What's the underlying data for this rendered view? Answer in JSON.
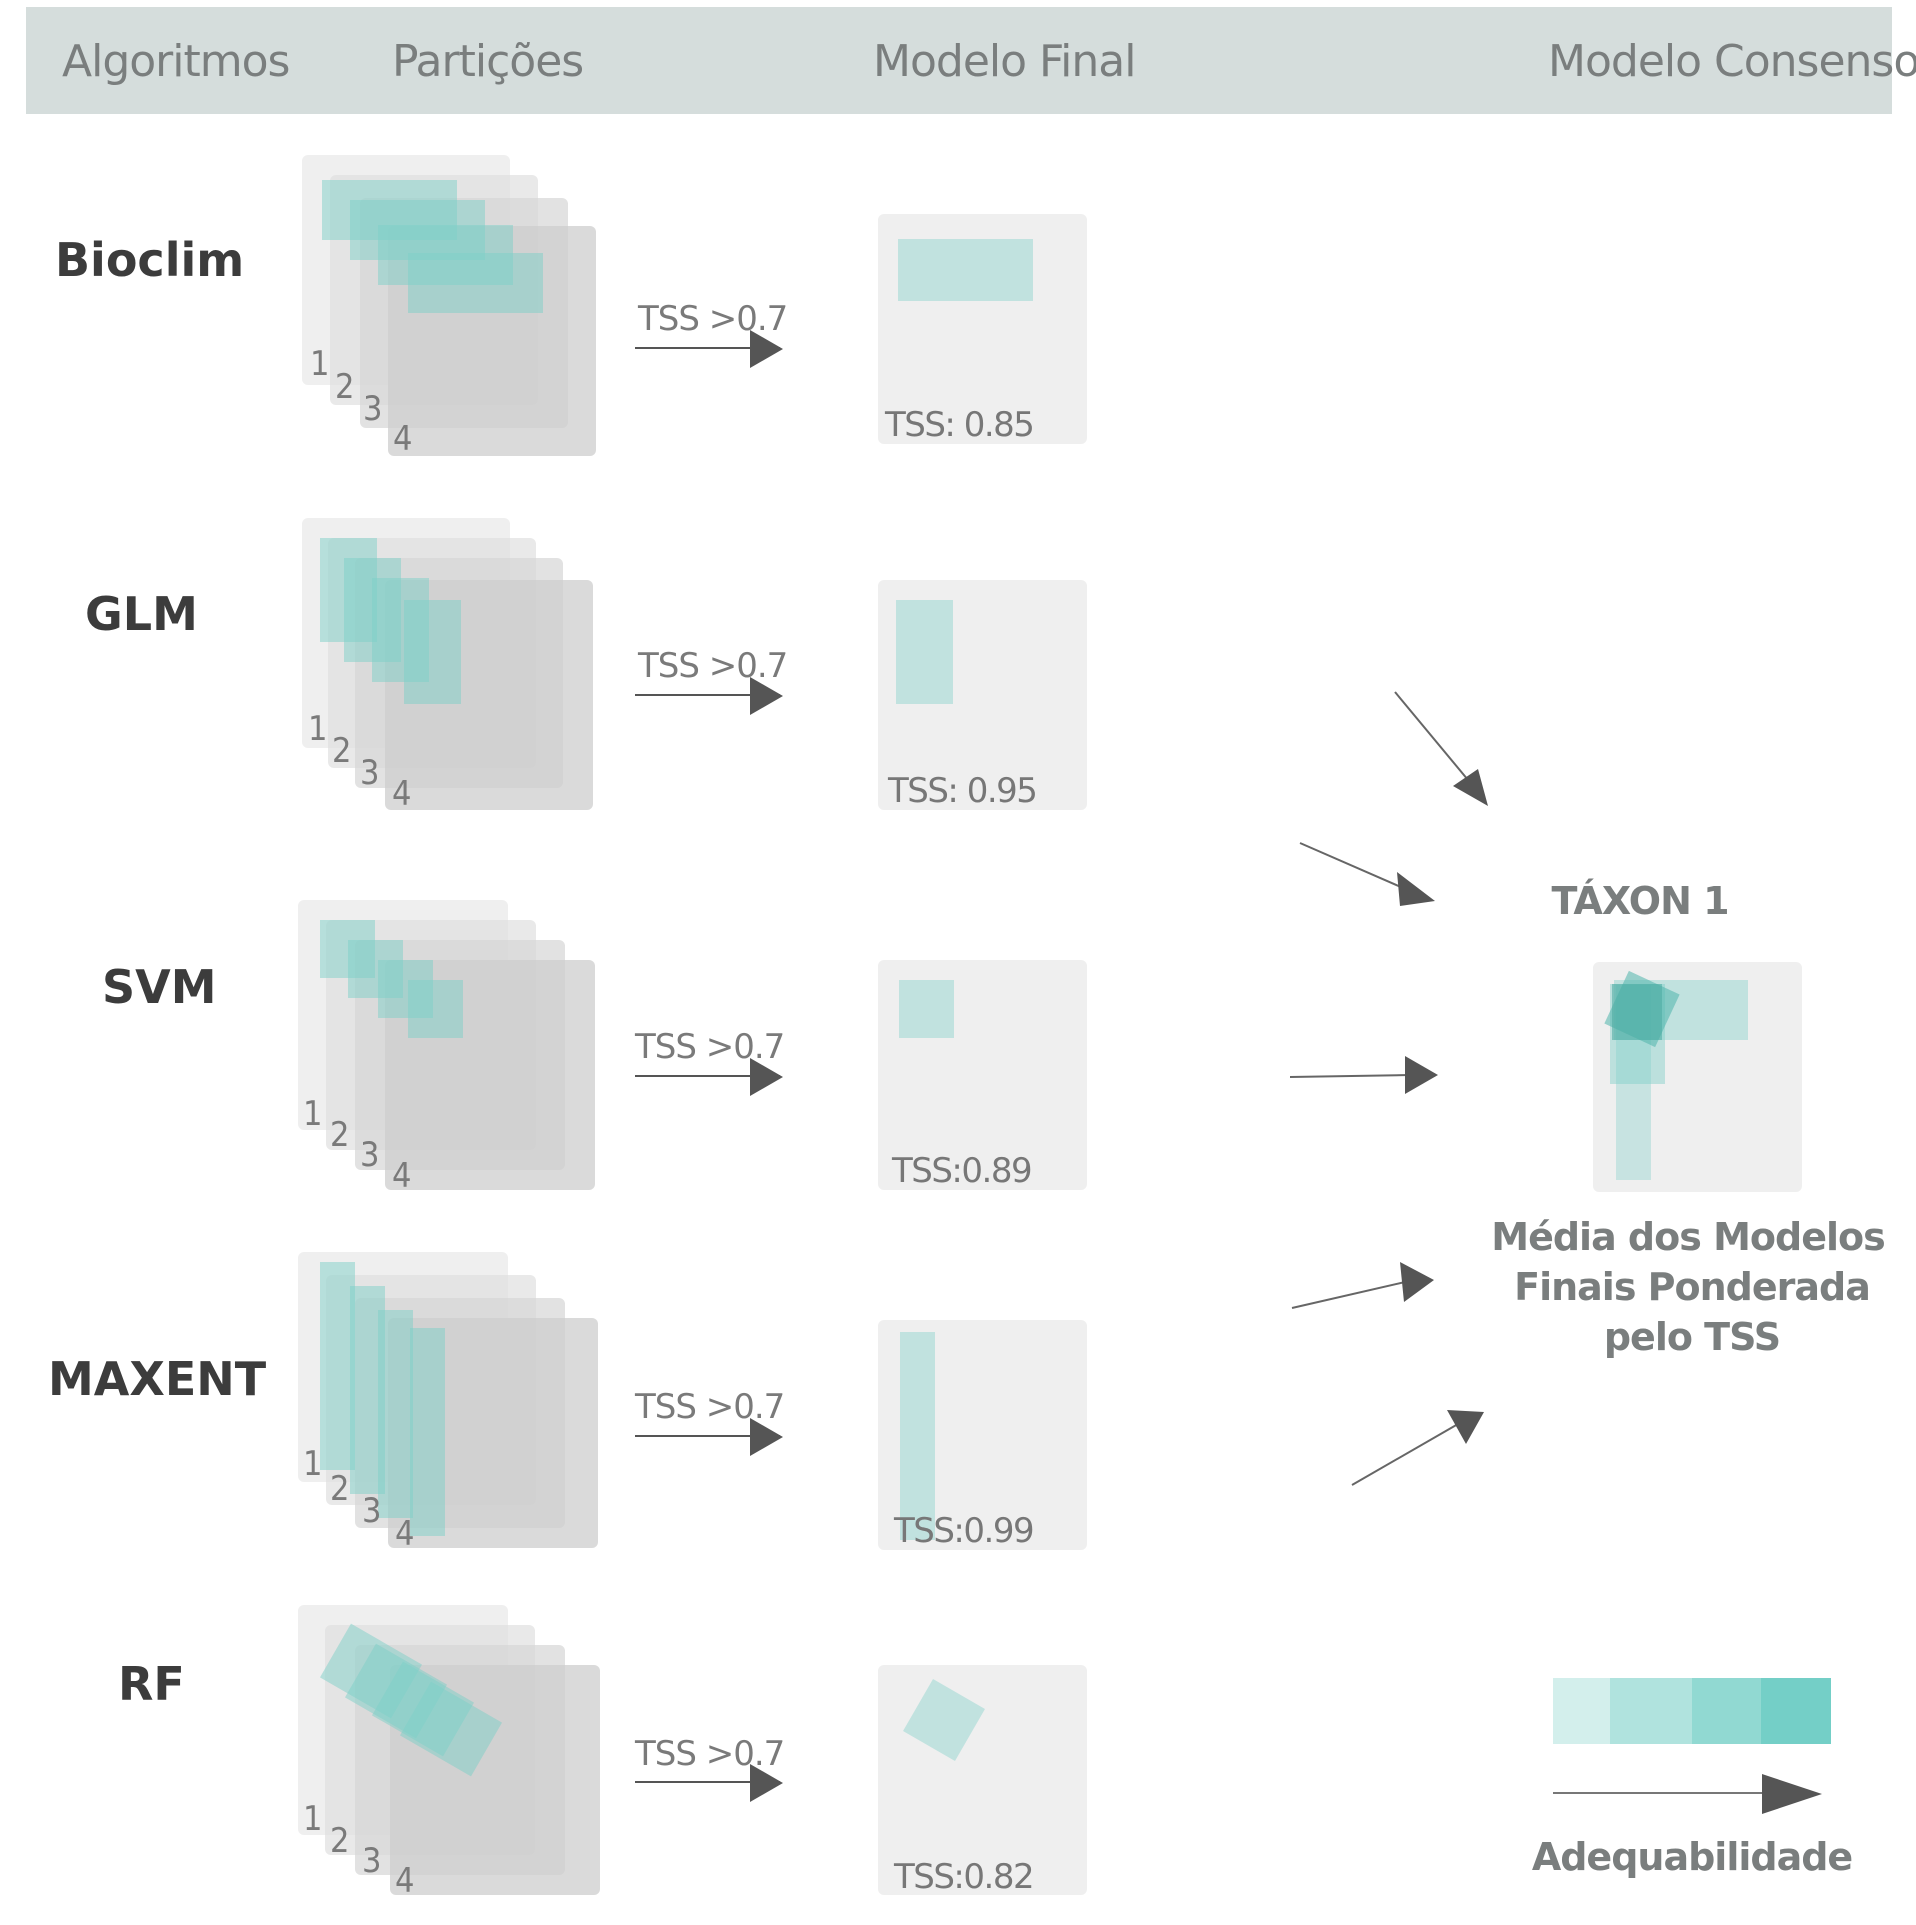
{
  "header": {
    "col_algoritmos": "Algoritmos",
    "col_particoes": "Partições",
    "col_modelo_final": "Modelo Final",
    "col_modelo_consenso": "Modelo Consenso"
  },
  "colors": {
    "header_bg": "#d5dddc",
    "panel": "#efefef",
    "panel_dark": "#cfcfcf",
    "teal": "#7ecfc8",
    "arrow": "#555555"
  },
  "partition_numbers": [
    "1",
    "2",
    "3",
    "4"
  ],
  "threshold_label": "TSS >0.7",
  "rows": [
    {
      "algorithm": "Bioclim",
      "tss": "TSS: 0.85"
    },
    {
      "algorithm": "GLM",
      "tss": "TSS: 0.95"
    },
    {
      "algorithm": "SVM",
      "tss": "TSS:0.89"
    },
    {
      "algorithm": "MAXENT",
      "tss": "TSS:0.99"
    },
    {
      "algorithm": "RF",
      "tss": "TSS:0.82"
    }
  ],
  "consensus": {
    "title": "TÁXON 1",
    "caption_line1": "Média dos Modelos",
    "caption_line2": "Finais Ponderada",
    "caption_line3": "pelo TSS",
    "scale_label": "Adequabilidade",
    "scale_colors": [
      "#d3efec",
      "#b0e3de",
      "#91d9d2",
      "#74cfc7"
    ]
  }
}
